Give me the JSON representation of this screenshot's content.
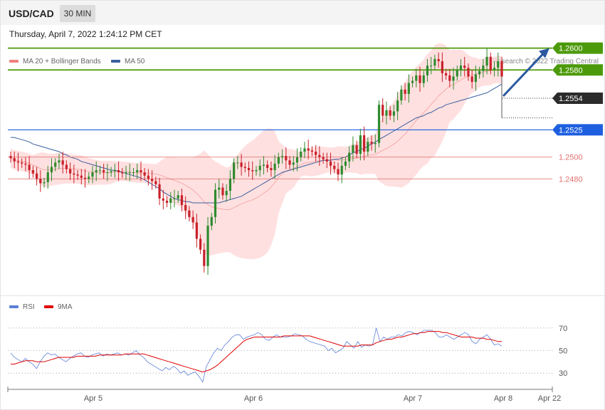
{
  "header": {
    "symbol": "USD/CAD",
    "timeframe": "30 MIN",
    "datetime": "Thursday, April 7, 2022 1:24:12 PM CET"
  },
  "legend": {
    "ma20_label": "MA 20 + Bollinger Bands",
    "ma20_color": "#f08080",
    "ma50_label": "MA 50",
    "ma50_color": "#3a5f9f"
  },
  "copyright": "Research © 2022 Trading Central",
  "rsi_legend": {
    "rsi_label": "RSI",
    "rsi_color": "#5b7fd6",
    "ma9_label": "9MA",
    "ma9_color": "#e00000"
  },
  "colors": {
    "up": "#2e8b2e",
    "down": "#c8202a",
    "resistance": "#4c9a0a",
    "support": "#1e5fe0",
    "pivot": "#e07070",
    "current": "#333333",
    "arrow": "#2b5aa0"
  },
  "chart_data": [
    {
      "type": "candlestick",
      "title": "USD/CAD",
      "timeframe": "30 MIN",
      "ylim": [
        1.2375,
        1.2605
      ],
      "x_ticks": [
        "Apr 5",
        "Apr 6",
        "Apr 7",
        "Apr 8",
        "Apr 22"
      ],
      "levels": [
        {
          "value": 1.26,
          "label": "1.2600",
          "kind": "resistance"
        },
        {
          "value": 1.258,
          "label": "1.2580",
          "kind": "resistance"
        },
        {
          "value": 1.2554,
          "label": "1.2554",
          "kind": "current"
        },
        {
          "value": 1.2525,
          "label": "1.2525",
          "kind": "support"
        },
        {
          "value": 1.25,
          "label": "1.2500",
          "kind": "pivot"
        },
        {
          "value": 1.248,
          "label": "1.2480",
          "kind": "pivot"
        }
      ],
      "closes": [
        1.2499,
        1.2496,
        1.2495,
        1.2494,
        1.2493,
        1.2488,
        1.2485,
        1.248,
        1.2476,
        1.2477,
        1.2486,
        1.2491,
        1.2495,
        1.2497,
        1.2493,
        1.2489,
        1.2485,
        1.2484,
        1.2483,
        1.2481,
        1.248,
        1.2482,
        1.2486,
        1.2488,
        1.2488,
        1.2486,
        1.2486,
        1.2487,
        1.2488,
        1.2486,
        1.2485,
        1.2486,
        1.2486,
        1.2486,
        1.2488,
        1.2486,
        1.2483,
        1.248,
        1.2478,
        1.2475,
        1.2462,
        1.246,
        1.2458,
        1.2462,
        1.2462,
        1.2465,
        1.2456,
        1.2451,
        1.2445,
        1.244,
        1.2425,
        1.2415,
        1.24,
        1.2437,
        1.2445,
        1.247,
        1.2472,
        1.2465,
        1.2469,
        1.248,
        1.2495,
        1.2495,
        1.2491,
        1.249,
        1.2488,
        1.2487,
        1.2488,
        1.2492,
        1.2493,
        1.249,
        1.2488,
        1.2494,
        1.25,
        1.2501,
        1.2497,
        1.2493,
        1.2495,
        1.25,
        1.2505,
        1.2508,
        1.2506,
        1.2505,
        1.2502,
        1.25,
        1.2498,
        1.2496,
        1.2492,
        1.2489,
        1.2484,
        1.2492,
        1.2496,
        1.2504,
        1.2511,
        1.2503,
        1.252,
        1.2505,
        1.2514,
        1.2512,
        1.2513,
        1.2548,
        1.2538,
        1.2543,
        1.2538,
        1.2542,
        1.2552,
        1.2562,
        1.2558,
        1.2568,
        1.257,
        1.2575,
        1.2568,
        1.2575,
        1.2584,
        1.2584,
        1.259,
        1.2588,
        1.2577,
        1.2575,
        1.257,
        1.2574,
        1.258,
        1.2584,
        1.2582,
        1.2574,
        1.2569,
        1.2576,
        1.2579,
        1.2584,
        1.2592,
        1.258,
        1.2582,
        1.2588,
        1.2574
      ],
      "ma50": [
        1.2518,
        1.2518,
        1.2517,
        1.2516,
        1.2515,
        1.2514,
        1.2512,
        1.2511,
        1.251,
        1.2509,
        1.2508,
        1.2507,
        1.2506,
        1.2505,
        1.2503,
        1.2502,
        1.25,
        1.2499,
        1.2498,
        1.2496,
        1.2495,
        1.2494,
        1.2493,
        1.2492,
        1.2491,
        1.249,
        1.2489,
        1.2488,
        1.2488,
        1.2487,
        1.2486,
        1.2485,
        1.2484,
        1.2483,
        1.2482,
        1.2481,
        1.2479,
        1.2477,
        1.2475,
        1.2473,
        1.2471,
        1.2468,
        1.2466,
        1.2464,
        1.2462,
        1.2461,
        1.246,
        1.2459,
        1.2459,
        1.2458,
        1.2458,
        1.2458,
        1.2458,
        1.2458,
        1.2458,
        1.2458,
        1.2458,
        1.2459,
        1.246,
        1.2461,
        1.2462,
        1.2463,
        1.2464,
        1.2466,
        1.2468,
        1.247,
        1.2472,
        1.2474,
        1.2476,
        1.2478,
        1.248,
        1.2482,
        1.2484,
        1.2486,
        1.2487,
        1.2488,
        1.2489,
        1.249,
        1.2491,
        1.2492,
        1.2493,
        1.2494,
        1.2495,
        1.2496,
        1.2497,
        1.2497,
        1.2497,
        1.2498,
        1.2498,
        1.2499,
        1.25,
        1.2502,
        1.2504,
        1.2505,
        1.2507,
        1.2508,
        1.251,
        1.2512,
        1.2514,
        1.2516,
        1.2518,
        1.252,
        1.2522,
        1.2524,
        1.2526,
        1.2528,
        1.253,
        1.2532,
        1.2534,
        1.2536,
        1.2537,
        1.2538,
        1.254,
        1.2541,
        1.2543,
        1.2545,
        1.2546,
        1.2548,
        1.2549,
        1.255,
        1.2551,
        1.2552,
        1.2553,
        1.2554,
        1.2555,
        1.2556,
        1.2557,
        1.2558,
        1.2559,
        1.2561,
        1.2563,
        1.2565,
        1.2567
      ]
    },
    {
      "type": "line",
      "title": "RSI",
      "ylim": [
        20,
        80
      ],
      "y_ticks": [
        30,
        50,
        70
      ],
      "series": [
        {
          "name": "RSI",
          "values": [
            48,
            44,
            42,
            40,
            43,
            40,
            38,
            34,
            40,
            45,
            48,
            46,
            47,
            44,
            42,
            40,
            43,
            45,
            47,
            48,
            45,
            44,
            46,
            47,
            48,
            45,
            47,
            46,
            47,
            48,
            46,
            47,
            46,
            48,
            50,
            46,
            44,
            40,
            38,
            36,
            34,
            32,
            35,
            33,
            36,
            34,
            30,
            32,
            28,
            30,
            31,
            27,
            22,
            36,
            42,
            48,
            52,
            50,
            55,
            58,
            62,
            64,
            64,
            60,
            62,
            63,
            64,
            66,
            64,
            60,
            59,
            62,
            64,
            62,
            62,
            62,
            63,
            65,
            64,
            63,
            60,
            58,
            57,
            56,
            55,
            54,
            50,
            52,
            48,
            50,
            52,
            58,
            55,
            52,
            58,
            53,
            55,
            54,
            55,
            70,
            58,
            62,
            60,
            62,
            62,
            64,
            63,
            66,
            67,
            66,
            64,
            66,
            68,
            68,
            68,
            66,
            62,
            62,
            64,
            62,
            60,
            62,
            64,
            66,
            64,
            58,
            56,
            60,
            62,
            64,
            60,
            55,
            56,
            54
          ]
        },
        {
          "name": "9MA",
          "values": [
            38,
            38,
            39,
            40,
            41,
            41,
            41,
            40,
            40,
            40,
            41,
            42,
            43,
            44,
            44,
            44,
            44,
            44,
            45,
            45,
            45,
            45,
            45,
            45,
            46,
            46,
            46,
            46,
            46,
            46,
            46,
            47,
            47,
            47,
            47,
            47,
            47,
            46,
            45,
            44,
            43,
            42,
            41,
            40,
            39,
            38,
            37,
            36,
            35,
            34,
            33,
            32,
            31,
            32,
            33,
            35,
            37,
            40,
            43,
            46,
            49,
            52,
            55,
            58,
            60,
            61,
            62,
            62,
            62,
            62,
            62,
            62,
            62,
            62,
            63,
            63,
            63,
            63,
            63,
            63,
            63,
            63,
            62,
            61,
            60,
            59,
            58,
            57,
            56,
            55,
            54,
            54,
            54,
            54,
            54,
            55,
            55,
            55,
            55,
            57,
            58,
            59,
            60,
            60,
            61,
            62,
            62,
            63,
            64,
            65,
            65,
            66,
            66,
            67,
            67,
            67,
            67,
            66,
            66,
            65,
            64,
            63,
            62,
            62,
            62,
            62,
            61,
            61,
            61,
            60,
            60,
            59,
            58,
            58
          ]
        }
      ]
    }
  ]
}
